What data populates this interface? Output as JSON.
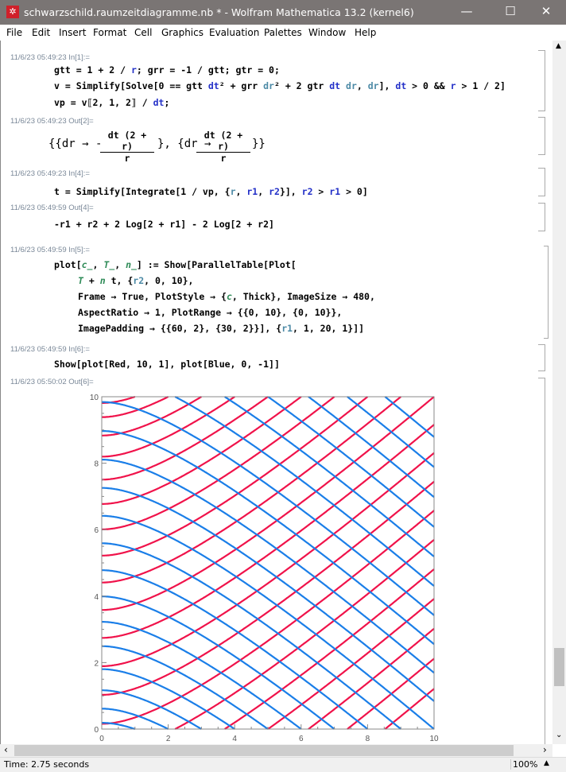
{
  "window": {
    "title": "schwarzschild.raumzeitdiagramme.nb * - Wolfram Mathematica 13.2 (kernel6)",
    "minimize": "—",
    "maximize": "☐",
    "close": "✕"
  },
  "menu": [
    "File",
    "Edit",
    "Insert",
    "Format",
    "Cell",
    "Graphics",
    "Evaluation",
    "Palettes",
    "Window",
    "Help"
  ],
  "cells": {
    "in1_label": "11/6/23 05:49:23 In[1]:=",
    "in1": [
      [
        [
          "gtt = 1 + 2 / ",
          ""
        ],
        [
          "r",
          "b"
        ],
        [
          "; grr = -1 / gtt; gtr = 0;",
          ""
        ]
      ],
      [
        [
          "v = Simplify[Solve[0 == gtt ",
          ""
        ],
        [
          "dt",
          "b"
        ],
        [
          "² + grr ",
          ""
        ],
        [
          "dr",
          "t"
        ],
        [
          "² + 2 gtr ",
          ""
        ],
        [
          "dt",
          "b"
        ],
        [
          " ",
          ""
        ],
        [
          "dr",
          "t"
        ],
        [
          ", ",
          ""
        ],
        [
          "dr",
          "t"
        ],
        [
          "], ",
          ""
        ],
        [
          "dt",
          "b"
        ],
        [
          " > 0 && ",
          ""
        ],
        [
          "r",
          "b"
        ],
        [
          " > 1 / 2]",
          ""
        ]
      ],
      [
        [
          "vp = v⟦2, 1, 2⟧ / ",
          ""
        ],
        [
          "dt",
          "b"
        ],
        [
          ";",
          ""
        ]
      ]
    ],
    "out2_label": "11/6/23 05:49:23 Out[2]=",
    "out2": {
      "open": "{{dr → -",
      "num": "dt (2 + r)",
      "den": "r",
      "mid": "}, {dr →",
      "close": "}}"
    },
    "in4_label": "11/6/23 05:49:23 In[4]:=",
    "in4": [
      [
        [
          "t = Simplify[Integrate[1 / vp, {",
          ""
        ],
        [
          "r",
          "t"
        ],
        [
          ", ",
          ""
        ],
        [
          "r1",
          "b"
        ],
        [
          ", ",
          ""
        ],
        [
          "r2",
          "b"
        ],
        [
          "}], ",
          ""
        ],
        [
          "r2",
          "b"
        ],
        [
          " > ",
          ""
        ],
        [
          "r1",
          "b"
        ],
        [
          " > 0]",
          ""
        ]
      ]
    ],
    "out4_label": "11/6/23 05:49:59 Out[4]=",
    "out4": "-r1 + r2 + 2 Log[2 + r1] - 2 Log[2 + r2]",
    "in5_label": "11/6/23 05:49:59 In[5]:=",
    "in5": [
      [
        [
          "plot[",
          ""
        ],
        [
          "c_",
          "g"
        ],
        [
          ", ",
          ""
        ],
        [
          "T_",
          "g"
        ],
        [
          ", ",
          ""
        ],
        [
          "n_",
          "g"
        ],
        [
          "] := Show[ParallelTable[Plot[",
          ""
        ]
      ],
      [
        [
          "T",
          "g"
        ],
        [
          " + ",
          ""
        ],
        [
          "n",
          "g"
        ],
        [
          " t, {",
          ""
        ],
        [
          "r2",
          "t"
        ],
        [
          ", 0, 10},",
          ""
        ]
      ],
      [
        [
          "Frame → True, PlotStyle → {",
          ""
        ],
        [
          "c",
          "g"
        ],
        [
          ", Thick}, ImageSize → 480,",
          ""
        ]
      ],
      [
        [
          "AspectRatio → 1, PlotRange → {{0, 10}, {0, 10}},",
          ""
        ]
      ],
      [
        [
          "ImagePadding → {{60, 2}, {30, 2}}], {",
          ""
        ],
        [
          "r1",
          "t"
        ],
        [
          ", 1, 20, 1}]]",
          ""
        ]
      ]
    ],
    "in6_label": "11/6/23 05:49:59 In[6]:=",
    "in6": [
      [
        [
          "Show[plot[Red, 10, 1], plot[Blue, 0, -1]]",
          ""
        ]
      ]
    ],
    "out6_label": "11/6/23 05:50:02 Out[6]="
  },
  "chart_data": {
    "type": "line",
    "formula": "T + n t, t = -r1 + r2 + 2 Log[2 + r1] - 2 Log[2 + r2]",
    "x_variable": "r2",
    "r1_values": [
      1,
      2,
      3,
      4,
      5,
      6,
      7,
      8,
      9,
      10,
      11,
      12,
      13,
      14,
      15,
      16,
      17,
      18,
      19,
      20
    ],
    "series": [
      {
        "color": "#f0124a",
        "T": 10,
        "n": 1
      },
      {
        "color": "#1a7ee8",
        "T": 0,
        "n": -1
      }
    ],
    "xlim": [
      0,
      10
    ],
    "ylim": [
      0,
      10
    ],
    "xticks": [
      "0",
      "2",
      "4",
      "6",
      "8",
      "10"
    ],
    "yticks": [
      "0",
      "2",
      "4",
      "6",
      "8",
      "10"
    ],
    "frame": true,
    "grid": false
  },
  "status": {
    "time": "Time: 2.75 seconds",
    "zoom": "100%"
  }
}
